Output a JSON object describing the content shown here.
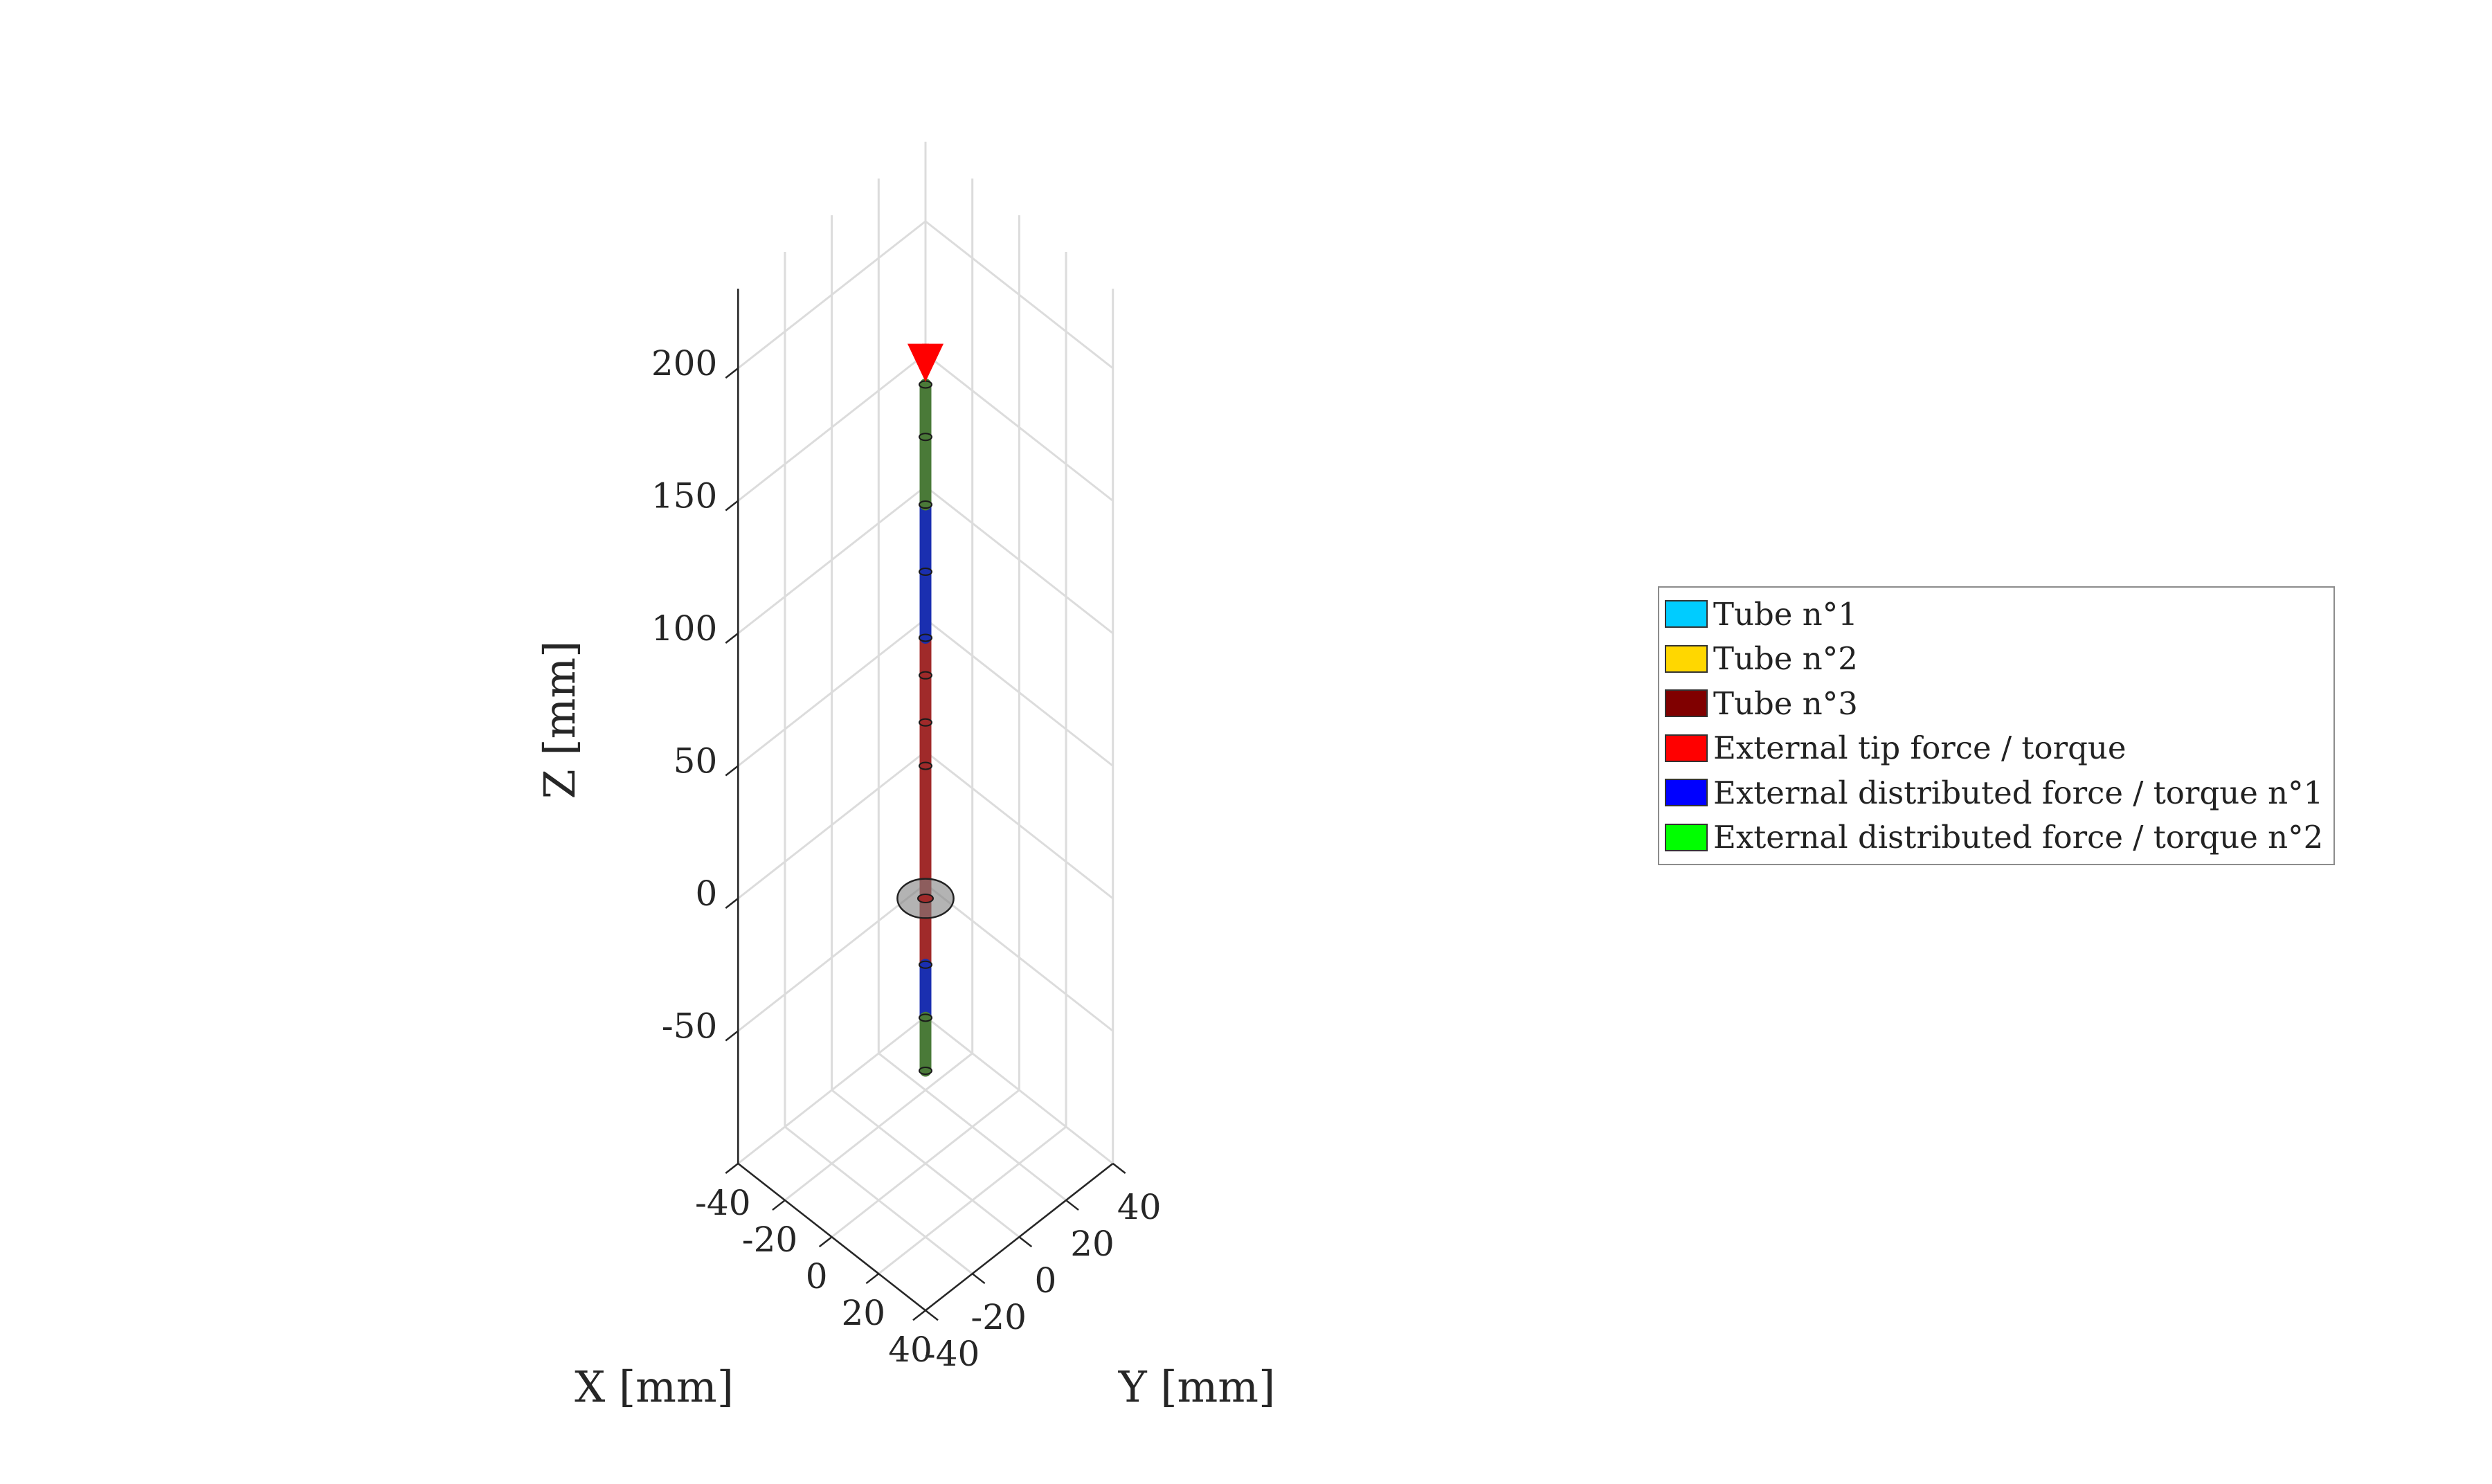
{
  "chart_data": {
    "type": "line",
    "title": "",
    "xlabel": "X [mm]",
    "ylabel": "Y [mm]",
    "zlabel": "Z [mm]",
    "xlim": [
      -40,
      40
    ],
    "ylim": [
      -40,
      40
    ],
    "zlim": [
      -100,
      230
    ],
    "grid": true,
    "legend_position": "right",
    "x_ticks": [
      "-40",
      "-20",
      "0",
      "20",
      "40"
    ],
    "y_ticks": [
      "-40",
      "-20",
      "0",
      "20",
      "40"
    ],
    "z_ticks": [
      "-50",
      "0",
      "50",
      "100",
      "150",
      "200"
    ],
    "x_tick_values": [
      -40,
      -20,
      0,
      20,
      40
    ],
    "y_tick_values": [
      -40,
      -20,
      0,
      20,
      40
    ],
    "z_tick_values": [
      -50,
      0,
      50,
      100,
      150,
      200
    ],
    "series": [
      {
        "name": "Tube n°1",
        "color": "#00ccff",
        "points": []
      },
      {
        "name": "Tube n°2",
        "color": "#ffd700",
        "points": []
      },
      {
        "name": "Tube n°3",
        "color": "#800000",
        "points": [
          [
            0,
            0,
            -25
          ],
          [
            0,
            0,
            0
          ],
          [
            0,
            0,
            50
          ],
          [
            -1,
            1,
            65
          ],
          [
            -3,
            3,
            80
          ],
          [
            -6,
            6,
            90
          ]
        ]
      },
      {
        "name": "External tip force / torque",
        "color": "#ff0000",
        "points": []
      },
      {
        "name": "External distributed force / torque n°1",
        "color": "#0000ff",
        "points": [
          [
            0,
            0,
            -45
          ],
          [
            0,
            0,
            -25
          ],
          [
            -6,
            6,
            90
          ],
          [
            -11,
            11,
            108
          ],
          [
            -17,
            17,
            125
          ]
        ]
      },
      {
        "name": "External distributed force / torque n°2",
        "color": "#00ff00",
        "points": [
          [
            0,
            0,
            -65
          ],
          [
            0,
            0,
            -45
          ],
          [
            -17,
            17,
            125
          ],
          [
            -21,
            21,
            145
          ],
          [
            -23,
            23,
            162
          ]
        ]
      }
    ],
    "tip_force": {
      "start": [
        -5,
        5,
        192
      ],
      "end": [
        -23,
        23,
        163
      ]
    },
    "base_disk": {
      "center": [
        0,
        0,
        0
      ],
      "radius": 12
    }
  }
}
